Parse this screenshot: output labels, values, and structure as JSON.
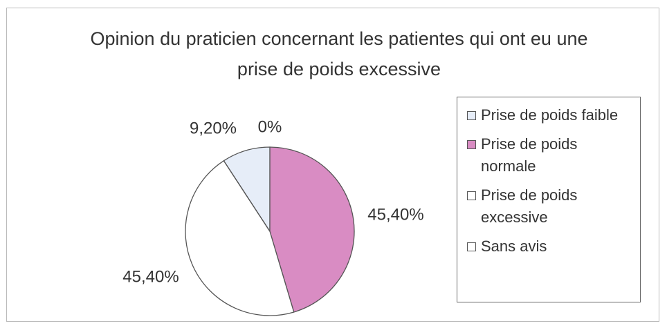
{
  "chart_data": {
    "type": "pie",
    "title": "Opinion du praticien concernant les patientes qui ont eu une prise de poids excessive",
    "categories": [
      "Prise de poids faible",
      "Prise de poids normale",
      "Prise de poids excessive",
      "Sans avis"
    ],
    "values": [
      9.2,
      45.4,
      45.4,
      0
    ],
    "value_labels": [
      "9,20%",
      "45,40%",
      "45,40%",
      "0%"
    ],
    "colors": [
      "#e6edf8",
      "#d98cc3",
      "#ffffff",
      "#ffffff"
    ],
    "legend": "right"
  }
}
